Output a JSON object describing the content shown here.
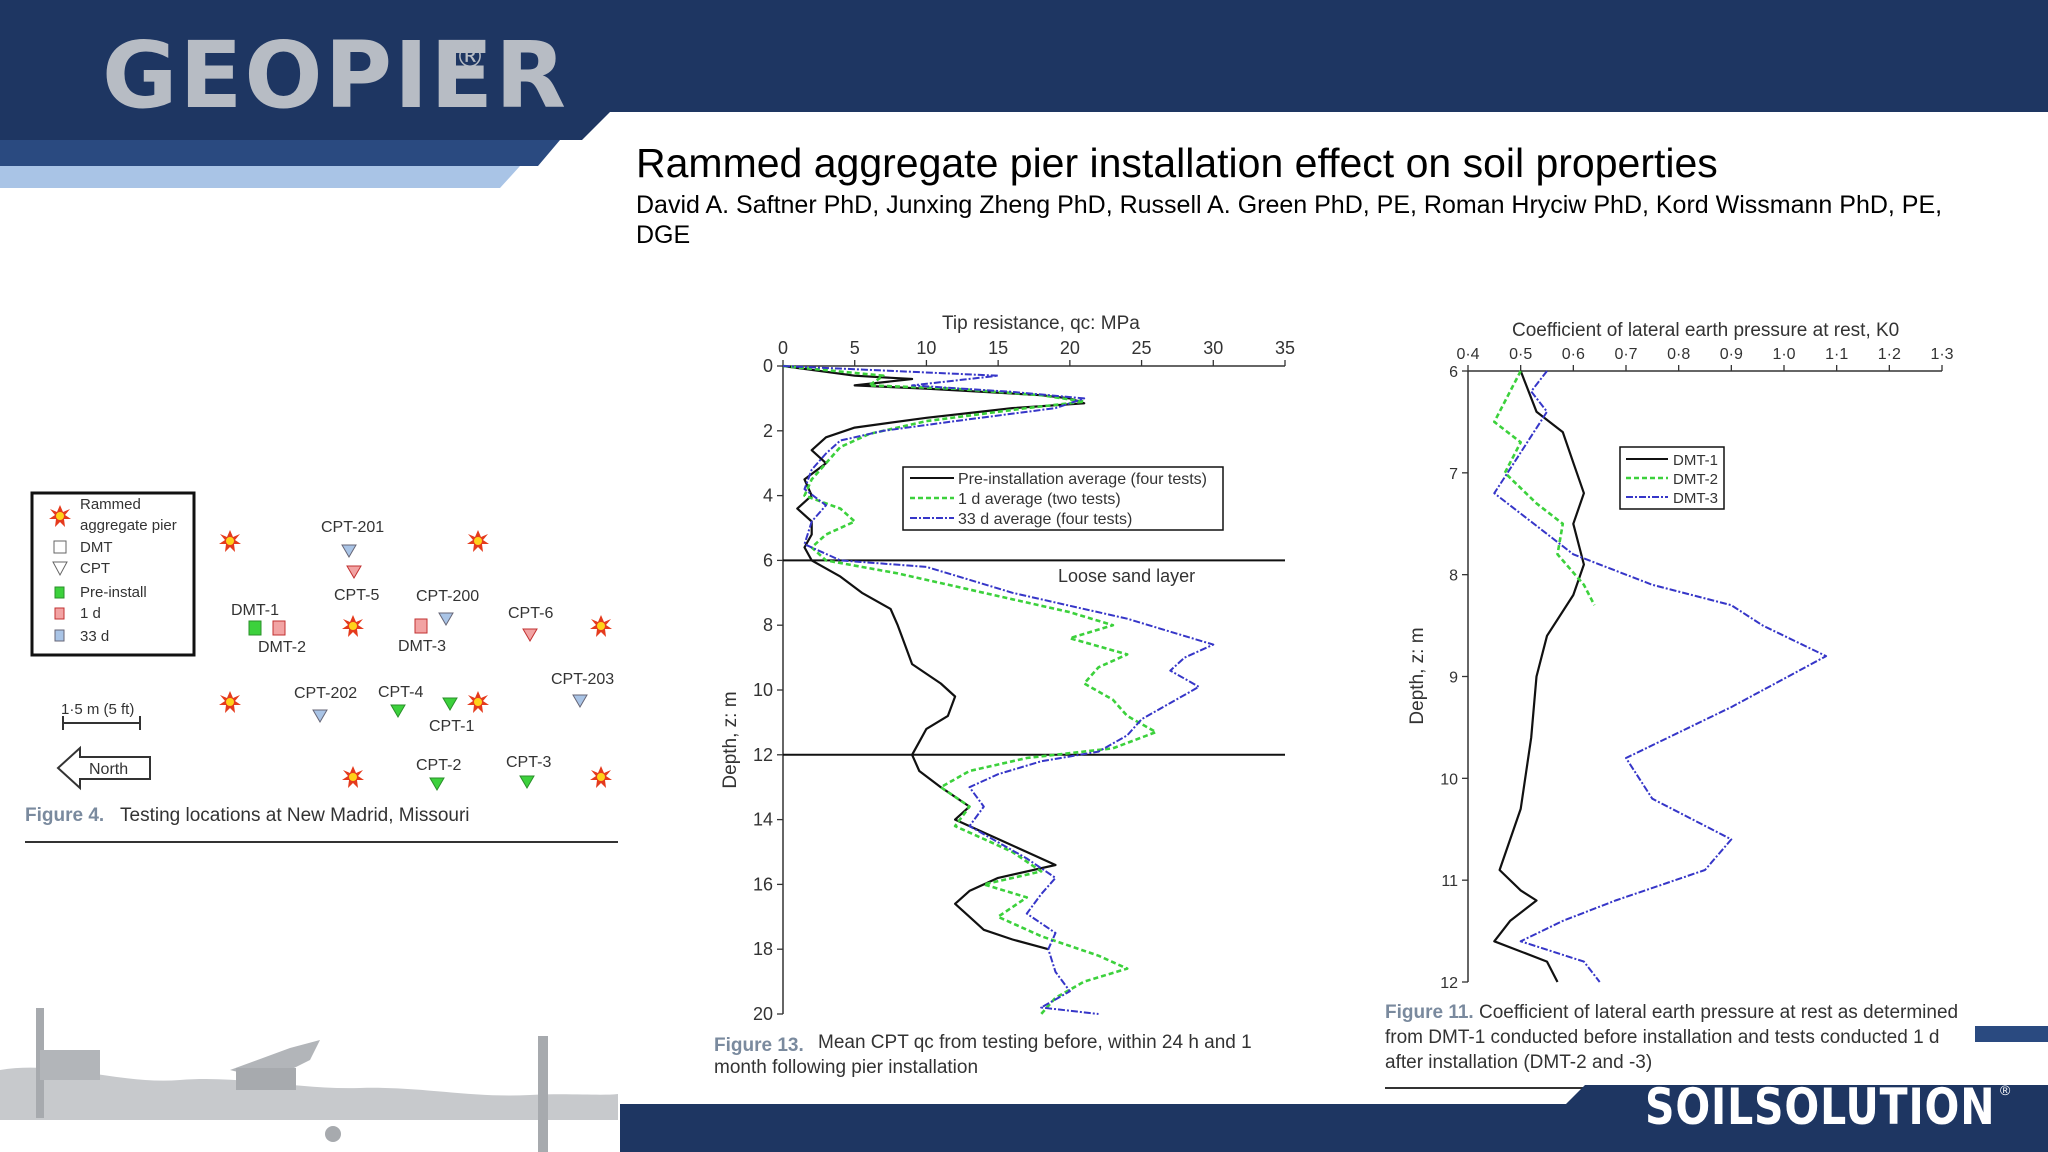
{
  "header": {
    "logo": "GEOPIER",
    "logo_mark": "®",
    "title": "Rammed aggregate pier installation effect on soil properties",
    "authors": "David A. Saftner PhD, Junxing Zheng PhD, Russell A. Green PhD, PE, Roman Hryciw PhD, Kord Wissmann PhD, PE, DGE"
  },
  "footer": {
    "logo": "SOILSOLUTION",
    "logo_mark": "®"
  },
  "colors": {
    "navy": "#1e3662",
    "light_blue": "#a9c4e6",
    "pre_install": "#111111",
    "one_day": "#3cd13c",
    "thirty_three_day": "#3636c8"
  },
  "figure4": {
    "caption_label": "Figure 4.",
    "caption_text": "Testing locations at New Madrid, Missouri",
    "legend": [
      "Rammed",
      "aggregate pier",
      "DMT",
      "CPT",
      "Pre-install",
      "1 d",
      "33 d"
    ],
    "scale_bar": "1·5 m (5 ft)",
    "north": "North",
    "labels": [
      "CPT-201",
      "CPT-5",
      "CPT-200",
      "CPT-6",
      "DMT-1",
      "DMT-2",
      "DMT-3",
      "CPT-203",
      "CPT-202",
      "CPT-4",
      "CPT-1",
      "CPT-2",
      "CPT-3"
    ]
  },
  "chart_data": [
    {
      "type": "line",
      "caption_label": "Figure 13.",
      "caption_text": "Mean CPT qc from testing before, within 24 h and 1 month following pier installation",
      "xlabel": "Tip resistance, qc: MPa",
      "ylabel": "Depth, z: m",
      "xlim": [
        0,
        35
      ],
      "ylim": [
        0,
        20
      ],
      "y_inverted": true,
      "x_ticks": [
        "0",
        "5",
        "10",
        "15",
        "20",
        "25",
        "30",
        "35"
      ],
      "y_ticks": [
        "0",
        "2",
        "4",
        "6",
        "8",
        "10",
        "12",
        "14",
        "16",
        "18",
        "20"
      ],
      "annotation": "Loose sand layer",
      "legend_position": "top-right",
      "series": [
        {
          "name": "Pre-installation average (four tests)",
          "color": "#111111",
          "points": [
            [
              0,
              0
            ],
            [
              5,
              0.3
            ],
            [
              9,
              0.4
            ],
            [
              5,
              0.6
            ],
            [
              10,
              0.7
            ],
            [
              18,
              0.9
            ],
            [
              20,
              1.0
            ],
            [
              21,
              1.15
            ],
            [
              16,
              1.3
            ],
            [
              10,
              1.6
            ],
            [
              5,
              1.9
            ],
            [
              3,
              2.2
            ],
            [
              2,
              2.6
            ],
            [
              3,
              3.0
            ],
            [
              1.5,
              3.5
            ],
            [
              2,
              4.0
            ],
            [
              1,
              4.4
            ],
            [
              2,
              4.8
            ],
            [
              2,
              5.2
            ],
            [
              1.5,
              5.6
            ],
            [
              2,
              6.0
            ],
            [
              4,
              6.5
            ],
            [
              5.5,
              7.0
            ],
            [
              7.5,
              7.5
            ],
            [
              8,
              8.0
            ],
            [
              8.5,
              8.6
            ],
            [
              9,
              9.2
            ],
            [
              11,
              9.8
            ],
            [
              12,
              10.2
            ],
            [
              11.5,
              10.8
            ],
            [
              10,
              11.2
            ],
            [
              9.5,
              11.6
            ],
            [
              9,
              12.0
            ],
            [
              9.5,
              12.5
            ],
            [
              11,
              13.0
            ],
            [
              13,
              13.6
            ],
            [
              12,
              14.0
            ],
            [
              15,
              14.6
            ],
            [
              17,
              15.0
            ],
            [
              19,
              15.4
            ],
            [
              15,
              15.8
            ],
            [
              13,
              16.2
            ],
            [
              12,
              16.6
            ],
            [
              13,
              17.0
            ],
            [
              14,
              17.4
            ],
            [
              16,
              17.7
            ],
            [
              18.5,
              18.0
            ]
          ]
        },
        {
          "name": "1 d average (two tests)",
          "color": "#3cd13c",
          "points": [
            [
              0,
              0
            ],
            [
              7,
              0.3
            ],
            [
              6,
              0.6
            ],
            [
              12,
              0.7
            ],
            [
              18,
              0.9
            ],
            [
              21,
              1.1
            ],
            [
              17,
              1.3
            ],
            [
              10,
              1.7
            ],
            [
              6,
              2.1
            ],
            [
              4,
              2.5
            ],
            [
              3,
              3.0
            ],
            [
              2,
              3.5
            ],
            [
              1.5,
              4.0
            ],
            [
              4,
              4.4
            ],
            [
              5,
              4.8
            ],
            [
              3,
              5.2
            ],
            [
              2,
              5.6
            ],
            [
              3,
              6.0
            ],
            [
              8,
              6.4
            ],
            [
              12,
              6.8
            ],
            [
              16,
              7.2
            ],
            [
              20,
              7.6
            ],
            [
              23,
              8.0
            ],
            [
              20,
              8.4
            ],
            [
              24,
              8.9
            ],
            [
              22,
              9.3
            ],
            [
              21,
              9.8
            ],
            [
              23,
              10.3
            ],
            [
              24,
              10.8
            ],
            [
              26,
              11.3
            ],
            [
              23,
              11.8
            ],
            [
              17,
              12.1
            ],
            [
              13,
              12.5
            ],
            [
              11,
              13.0
            ],
            [
              13,
              13.6
            ],
            [
              12,
              14.2
            ],
            [
              14,
              14.6
            ],
            [
              16,
              15.0
            ],
            [
              18,
              15.6
            ],
            [
              14,
              16.0
            ],
            [
              17,
              16.4
            ],
            [
              15,
              17.0
            ],
            [
              18,
              17.6
            ],
            [
              22,
              18.2
            ],
            [
              24,
              18.6
            ],
            [
              21,
              19.0
            ],
            [
              19,
              19.5
            ],
            [
              18,
              20.0
            ]
          ]
        },
        {
          "name": "33 d average (four tests)",
          "color": "#3636c8",
          "points": [
            [
              0,
              0
            ],
            [
              15,
              0.3
            ],
            [
              9,
              0.6
            ],
            [
              16,
              0.8
            ],
            [
              21,
              1.0
            ],
            [
              19,
              1.3
            ],
            [
              12,
              1.7
            ],
            [
              7,
              2.0
            ],
            [
              4,
              2.3
            ],
            [
              3,
              2.7
            ],
            [
              2,
              3.2
            ],
            [
              1.5,
              3.8
            ],
            [
              3,
              4.3
            ],
            [
              2,
              4.8
            ],
            [
              1.5,
              5.5
            ],
            [
              4,
              6.0
            ],
            [
              10,
              6.2
            ],
            [
              13,
              6.6
            ],
            [
              16,
              7.0
            ],
            [
              20,
              7.4
            ],
            [
              24,
              7.8
            ],
            [
              27,
              8.2
            ],
            [
              30,
              8.6
            ],
            [
              28,
              9.0
            ],
            [
              27,
              9.4
            ],
            [
              29,
              9.9
            ],
            [
              27,
              10.4
            ],
            [
              25,
              10.9
            ],
            [
              24,
              11.4
            ],
            [
              22,
              11.9
            ],
            [
              18,
              12.2
            ],
            [
              15,
              12.6
            ],
            [
              13,
              13.0
            ],
            [
              14,
              13.6
            ],
            [
              13,
              14.2
            ],
            [
              15,
              14.7
            ],
            [
              17,
              15.2
            ],
            [
              19,
              15.8
            ],
            [
              18,
              16.3
            ],
            [
              17,
              16.9
            ],
            [
              19,
              17.5
            ],
            [
              18.5,
              18.0
            ],
            [
              19,
              18.7
            ],
            [
              20,
              19.3
            ],
            [
              18,
              19.8
            ],
            [
              22,
              20.0
            ]
          ]
        }
      ]
    },
    {
      "type": "line",
      "caption_label": "Figure 11.",
      "caption_text": "Coefficient of lateral earth pressure at rest as determined from DMT-1 conducted before installation and tests conducted 1 d after installation (DMT-2 and -3)",
      "xlabel": "Coefficient of lateral earth pressure at rest, K0",
      "ylabel": "Depth, z: m",
      "xlim": [
        0.4,
        1.3
      ],
      "ylim": [
        6,
        12
      ],
      "y_inverted": true,
      "x_ticks": [
        "0·4",
        "0·5",
        "0·6",
        "0·7",
        "0·8",
        "0·9",
        "1·0",
        "1·1",
        "1·2",
        "1·3"
      ],
      "y_ticks": [
        "6",
        "7",
        "8",
        "9",
        "10",
        "11",
        "12"
      ],
      "legend_position": "top-right",
      "series": [
        {
          "name": "DMT-1",
          "color": "#111111",
          "points": [
            [
              0.5,
              6.0
            ],
            [
              0.53,
              6.4
            ],
            [
              0.58,
              6.6
            ],
            [
              0.6,
              6.9
            ],
            [
              0.62,
              7.2
            ],
            [
              0.6,
              7.5
            ],
            [
              0.62,
              7.9
            ],
            [
              0.6,
              8.2
            ],
            [
              0.55,
              8.6
            ],
            [
              0.53,
              9.0
            ],
            [
              0.52,
              9.6
            ],
            [
              0.5,
              10.3
            ],
            [
              0.46,
              10.9
            ],
            [
              0.5,
              11.1
            ],
            [
              0.53,
              11.2
            ],
            [
              0.48,
              11.4
            ],
            [
              0.45,
              11.6
            ],
            [
              0.55,
              11.8
            ],
            [
              0.57,
              12.0
            ]
          ]
        },
        {
          "name": "DMT-2",
          "color": "#3cd13c",
          "points": [
            [
              0.5,
              6.0
            ],
            [
              0.45,
              6.5
            ],
            [
              0.5,
              6.7
            ],
            [
              0.47,
              7.0
            ],
            [
              0.53,
              7.3
            ],
            [
              0.58,
              7.5
            ],
            [
              0.57,
              7.8
            ],
            [
              0.62,
              8.1
            ],
            [
              0.64,
              8.3
            ]
          ]
        },
        {
          "name": "DMT-3",
          "color": "#3636c8",
          "points": [
            [
              0.55,
              6.0
            ],
            [
              0.52,
              6.2
            ],
            [
              0.55,
              6.4
            ],
            [
              0.5,
              6.8
            ],
            [
              0.45,
              7.2
            ],
            [
              0.5,
              7.4
            ],
            [
              0.6,
              7.8
            ],
            [
              0.75,
              8.1
            ],
            [
              0.9,
              8.3
            ],
            [
              0.96,
              8.5
            ],
            [
              1.08,
              8.8
            ],
            [
              0.9,
              9.3
            ],
            [
              0.7,
              9.8
            ],
            [
              0.75,
              10.2
            ],
            [
              0.9,
              10.6
            ],
            [
              0.85,
              10.9
            ],
            [
              0.68,
              11.2
            ],
            [
              0.58,
              11.4
            ],
            [
              0.5,
              11.6
            ],
            [
              0.62,
              11.8
            ],
            [
              0.65,
              12.0
            ]
          ]
        }
      ]
    }
  ]
}
